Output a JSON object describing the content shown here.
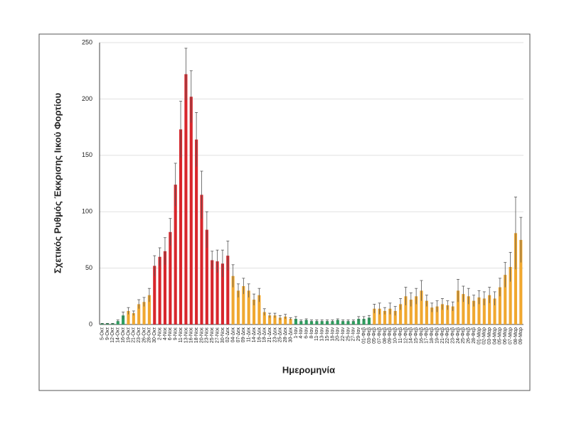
{
  "chart_data": {
    "type": "bar",
    "y_label": "Σχετικός Ρυθμός Έκκρισης Ιικού Φορτίου",
    "x_label": "Ημερομηνία",
    "categories": [
      "5-Οκτ",
      "9-Οκτ",
      "12-Οκτ",
      "14-Οκτ",
      "16-Οκτ",
      "19-Οκτ",
      "21-Οκτ",
      "23-Οκτ",
      "26-Οκτ",
      "28-Οκτ",
      "30-Οκτ",
      "2-Νοε",
      "4-Νοε",
      "6-Νοε",
      "9-Νοε",
      "11-Νοε",
      "13-Νοε",
      "16-Νοε",
      "18-Νοε",
      "20-Νοε",
      "23-Νοε",
      "25-Νοε",
      "27-Νοε",
      "30-Νοε",
      "02-Δεκ",
      "04-Δεκ",
      "07-Δεκ",
      "09-Δεκ",
      "11-Δεκ",
      "14-Δεκ",
      "16-Δεκ",
      "18-Δεκ",
      "21-Δεκ",
      "23-Δεκ",
      "25-Δεκ",
      "28-Δεκ",
      "30-Δεκ",
      "1-Ιαν",
      "4-Ιαν",
      "6-Ιαν",
      "8-Ιαν",
      "11-Ιαν",
      "13-Ιαν",
      "15-Ιαν",
      "18-Ιαν",
      "20-Ιαν",
      "22-Ιαν",
      "25-Ιαν",
      "27-Ιαν",
      "29-Ιαν",
      "01-Φεβ",
      "03-Φεβ",
      "05-Φεβ",
      "07-Φεβ",
      "08-Φεβ",
      "09-Φεβ",
      "10-Φεβ",
      "11-Φεβ",
      "12-Φεβ",
      "14-Φεβ",
      "15-Φεβ",
      "16-Φεβ",
      "17-Φεβ",
      "18-Φεβ",
      "19-Φεβ",
      "21-Φεβ",
      "22-Φεβ",
      "23-Φεβ",
      "24-Φεβ",
      "25-Φεβ",
      "26-Φεβ",
      "28-Φεβ",
      "01-Μαρ",
      "02-Μαρ",
      "03-Μαρ",
      "04-Μαρ",
      "05-Μαρ",
      "06-Μαρ",
      "07-Μαρ",
      "08-Μαρ",
      "09-Μαρ"
    ],
    "values": [
      1,
      1,
      1,
      3,
      8,
      12,
      10,
      18,
      20,
      26,
      52,
      60,
      65,
      82,
      124,
      173,
      222,
      202,
      164,
      115,
      84,
      57,
      56,
      54,
      61,
      43,
      30,
      34,
      30,
      22,
      26,
      11,
      8,
      8,
      6,
      7,
      5,
      5,
      3,
      4,
      3,
      3,
      3,
      3,
      3,
      4,
      3,
      3,
      3,
      5,
      5,
      6,
      14,
      14,
      12,
      14,
      12,
      18,
      25,
      22,
      25,
      30,
      21,
      15,
      16,
      18,
      17,
      16,
      30,
      27,
      25,
      21,
      24,
      23,
      26,
      23,
      33,
      44,
      51,
      81,
      75
    ],
    "errors": [
      0,
      0,
      0,
      1,
      3,
      3,
      2,
      4,
      4,
      6,
      9,
      8,
      12,
      12,
      19,
      25,
      23,
      23,
      24,
      21,
      16,
      8,
      10,
      12,
      13,
      10,
      6,
      7,
      6,
      5,
      6,
      3,
      2,
      2,
      2,
      2,
      1,
      2,
      1,
      1,
      1,
      1,
      1,
      1,
      1,
      1,
      1,
      1,
      1,
      2,
      2,
      2,
      4,
      5,
      3,
      5,
      4,
      5,
      8,
      6,
      7,
      9,
      5,
      4,
      5,
      5,
      4,
      4,
      10,
      7,
      7,
      5,
      6,
      6,
      7,
      6,
      8,
      11,
      13,
      32,
      20
    ],
    "colors": [
      "#2e9e5e",
      "#2e9e5e",
      "#2e9e5e",
      "#2e9e5e",
      "#2e9e5e",
      "#f0a830",
      "#f0a830",
      "#f0a830",
      "#f0a830",
      "#f0a830",
      "#d8262c",
      "#d8262c",
      "#d8262c",
      "#d8262c",
      "#d8262c",
      "#d8262c",
      "#d8262c",
      "#d8262c",
      "#d8262c",
      "#d8262c",
      "#d8262c",
      "#d8262c",
      "#d8262c",
      "#d8262c",
      "#d8262c",
      "#f0a830",
      "#f0a830",
      "#f0a830",
      "#f0a830",
      "#f0a830",
      "#f0a830",
      "#f0a830",
      "#f0a830",
      "#f0a830",
      "#f0a830",
      "#f0a830",
      "#f0a830",
      "#2e9e5e",
      "#2e9e5e",
      "#2e9e5e",
      "#2e9e5e",
      "#2e9e5e",
      "#2e9e5e",
      "#2e9e5e",
      "#2e9e5e",
      "#2e9e5e",
      "#2e9e5e",
      "#2e9e5e",
      "#2e9e5e",
      "#2e9e5e",
      "#2e9e5e",
      "#2e9e5e",
      "#f0a830",
      "#f0a830",
      "#f0a830",
      "#f0a830",
      "#f0a830",
      "#f0a830",
      "#f0a830",
      "#f0a830",
      "#f0a830",
      "#f0a830",
      "#f0a830",
      "#f0a830",
      "#f0a830",
      "#f0a830",
      "#f0a830",
      "#f0a830",
      "#f0a830",
      "#f0a830",
      "#f0a830",
      "#f0a830",
      "#f0a830",
      "#f0a830",
      "#f0a830",
      "#f0a830",
      "#f0a830",
      "#f0a830",
      "#f0a830",
      "#f0a830",
      "#f0a830"
    ],
    "ylim": [
      0,
      250
    ],
    "yticks": [
      0,
      50,
      100,
      150,
      200,
      250
    ],
    "grid": true
  }
}
